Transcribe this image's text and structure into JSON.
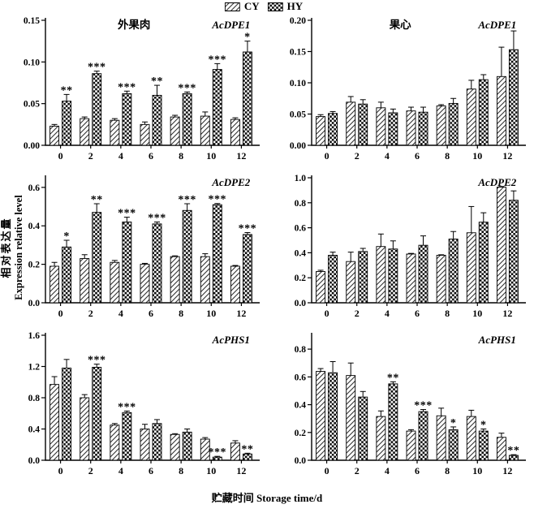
{
  "legend": {
    "items": [
      {
        "label": "CY",
        "pattern": "diagonal-hatch"
      },
      {
        "label": "HY",
        "pattern": "checkerboard"
      }
    ]
  },
  "y_axis": {
    "label_cn": "相对表达量",
    "label_en": "Expression relative level"
  },
  "x_axis": {
    "label_cn": "贮藏时间",
    "label_en": "Storage time/d"
  },
  "colors": {
    "bar_outline": "#000000",
    "hatch_line": "#333333",
    "checker_fill": "#0a0a0a",
    "background": "#ffffff"
  },
  "chart_data": [
    {
      "type": "bar",
      "tissue": "外果肉",
      "gene": "AcDPE1",
      "categories": [
        "0",
        "2",
        "4",
        "6",
        "8",
        "10",
        "12"
      ],
      "ylim": [
        0,
        0.15
      ],
      "yticks": [
        "0.00",
        "0.05",
        "0.10",
        "0.15"
      ],
      "series": [
        {
          "name": "CY",
          "values": [
            0.023,
            0.032,
            0.03,
            0.025,
            0.034,
            0.035,
            0.031
          ],
          "errors": [
            0.002,
            0.002,
            0.002,
            0.003,
            0.002,
            0.005,
            0.002
          ]
        },
        {
          "name": "HY",
          "values": [
            0.053,
            0.086,
            0.062,
            0.06,
            0.062,
            0.091,
            0.112
          ],
          "errors": [
            0.008,
            0.003,
            0.003,
            0.012,
            0.002,
            0.007,
            0.013
          ]
        }
      ],
      "sig": [
        "**",
        "***",
        "***",
        "**",
        "***",
        "***",
        "*"
      ]
    },
    {
      "type": "bar",
      "tissue": "果心",
      "gene": "AcDPE1",
      "categories": [
        "0",
        "2",
        "4",
        "6",
        "8",
        "10",
        "12"
      ],
      "ylim": [
        0,
        0.2
      ],
      "yticks": [
        "0.00",
        "0.05",
        "0.10",
        "0.15",
        "0.20"
      ],
      "series": [
        {
          "name": "CY",
          "values": [
            0.046,
            0.069,
            0.06,
            0.055,
            0.063,
            0.09,
            0.11
          ],
          "errors": [
            0.003,
            0.009,
            0.009,
            0.006,
            0.002,
            0.014,
            0.047
          ]
        },
        {
          "name": "HY",
          "values": [
            0.051,
            0.066,
            0.052,
            0.053,
            0.067,
            0.105,
            0.153
          ],
          "errors": [
            0.003,
            0.007,
            0.006,
            0.008,
            0.008,
            0.008,
            0.03
          ]
        }
      ],
      "sig": [
        "",
        "",
        "",
        "",
        "",
        "",
        ""
      ]
    },
    {
      "type": "bar",
      "tissue": "",
      "gene": "AcDPE2",
      "categories": [
        "0",
        "2",
        "4",
        "6",
        "8",
        "10",
        "12"
      ],
      "ylim": [
        0,
        0.65
      ],
      "yticks": [
        "0.0",
        "0.2",
        "0.4",
        "0.6"
      ],
      "series": [
        {
          "name": "CY",
          "values": [
            0.19,
            0.23,
            0.21,
            0.2,
            0.24,
            0.24,
            0.19
          ],
          "errors": [
            0.02,
            0.02,
            0.01,
            0.005,
            0.004,
            0.015,
            0.004
          ]
        },
        {
          "name": "HY",
          "values": [
            0.29,
            0.47,
            0.42,
            0.41,
            0.48,
            0.51,
            0.355
          ],
          "errors": [
            0.035,
            0.045,
            0.025,
            0.01,
            0.035,
            0.006,
            0.01
          ]
        }
      ],
      "sig": [
        "*",
        "**",
        "***",
        "***",
        "***",
        "***",
        "***"
      ]
    },
    {
      "type": "bar",
      "tissue": "",
      "gene": "AcDPE2",
      "categories": [
        "0",
        "2",
        "4",
        "6",
        "8",
        "10",
        "12"
      ],
      "ylim": [
        0,
        1.0
      ],
      "yticks": [
        "0.0",
        "0.2",
        "0.4",
        "0.6",
        "0.8",
        "1.0"
      ],
      "series": [
        {
          "name": "CY",
          "values": [
            0.25,
            0.33,
            0.45,
            0.39,
            0.38,
            0.56,
            0.925
          ],
          "errors": [
            0.01,
            0.075,
            0.1,
            0.005,
            0.004,
            0.21,
            0.005
          ]
        },
        {
          "name": "HY",
          "values": [
            0.38,
            0.41,
            0.43,
            0.46,
            0.51,
            0.645,
            0.82
          ],
          "errors": [
            0.025,
            0.025,
            0.065,
            0.075,
            0.06,
            0.075,
            0.075
          ]
        }
      ],
      "sig": [
        "",
        "",
        "",
        "",
        "",
        "",
        ""
      ]
    },
    {
      "type": "bar",
      "tissue": "",
      "gene": "AcPHS1",
      "categories": [
        "0",
        "2",
        "4",
        "6",
        "8",
        "10",
        "12"
      ],
      "ylim": [
        0,
        1.6
      ],
      "yticks": [
        "0.0",
        "0.4",
        "0.8",
        "1.2",
        "1.6"
      ],
      "series": [
        {
          "name": "CY",
          "values": [
            0.97,
            0.8,
            0.45,
            0.4,
            0.33,
            0.27,
            0.22
          ],
          "errors": [
            0.1,
            0.04,
            0.02,
            0.06,
            0.01,
            0.02,
            0.03
          ]
        },
        {
          "name": "HY",
          "values": [
            1.18,
            1.19,
            0.61,
            0.47,
            0.36,
            0.04,
            0.08
          ],
          "errors": [
            0.11,
            0.04,
            0.02,
            0.05,
            0.04,
            0.01,
            0.01
          ]
        }
      ],
      "sig": [
        "",
        "***",
        "***",
        "",
        "",
        "***",
        "**"
      ]
    },
    {
      "type": "bar",
      "tissue": "",
      "gene": "AcPHS1",
      "categories": [
        "0",
        "2",
        "4",
        "6",
        "8",
        "10",
        "12"
      ],
      "ylim": [
        0,
        0.9
      ],
      "yticks": [
        "0.0",
        "0.2",
        "0.4",
        "0.6",
        "0.8"
      ],
      "series": [
        {
          "name": "CY",
          "values": [
            0.64,
            0.61,
            0.315,
            0.21,
            0.32,
            0.315,
            0.165
          ],
          "errors": [
            0.02,
            0.09,
            0.04,
            0.01,
            0.055,
            0.045,
            0.03
          ]
        },
        {
          "name": "HY",
          "values": [
            0.63,
            0.455,
            0.55,
            0.35,
            0.22,
            0.21,
            0.035
          ],
          "errors": [
            0.08,
            0.04,
            0.015,
            0.015,
            0.02,
            0.015,
            0.005
          ]
        }
      ],
      "sig": [
        "",
        "",
        "**",
        "***",
        "*",
        "*",
        "**"
      ]
    }
  ]
}
